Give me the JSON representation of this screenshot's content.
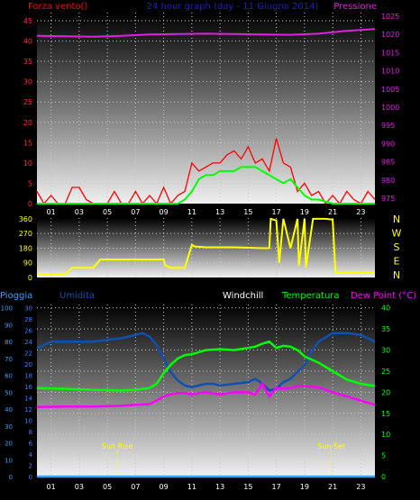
{
  "title": "24 hour graph (day - 11 Giugno 2014)",
  "chart_data": [
    {
      "type": "line",
      "name": "wind-pressure",
      "labels": {
        "left": "Forza vento()",
        "right": "Pressione"
      },
      "x_tick_labels": [
        "01",
        "03",
        "05",
        "07",
        "09",
        "11",
        "13",
        "15",
        "17",
        "19",
        "21",
        "23"
      ],
      "x_hours": [
        1,
        3,
        5,
        7,
        9,
        11,
        13,
        15,
        17,
        19,
        21,
        23
      ],
      "x_range": [
        0,
        24
      ],
      "left_axis": {
        "ticks": [
          0,
          5,
          10,
          15,
          20,
          25,
          30,
          35,
          40,
          45
        ],
        "range": [
          0,
          47
        ]
      },
      "right_axis": {
        "ticks": [
          975,
          980,
          985,
          990,
          995,
          1000,
          1005,
          1010,
          1015,
          1020,
          1025
        ],
        "range": [
          973.5,
          1026
        ]
      },
      "grid": true,
      "series": [
        {
          "name": "pressure",
          "axis": "right",
          "color": "#e020e0",
          "x": [
            0,
            2,
            4,
            6,
            8,
            10,
            12,
            14,
            16,
            18,
            20,
            22,
            24
          ],
          "y": [
            1019.6,
            1019.5,
            1019.4,
            1019.6,
            1020.0,
            1020.1,
            1020.2,
            1020.1,
            1020.0,
            1019.9,
            1020.2,
            1021.0,
            1021.5
          ]
        },
        {
          "name": "gust",
          "axis": "left",
          "color": "#ff0000",
          "x": [
            0,
            0.5,
            1,
            1.5,
            2,
            2.5,
            3,
            3.5,
            4,
            4.5,
            5,
            5.5,
            6,
            6.5,
            7,
            7.5,
            8,
            8.5,
            9,
            9.5,
            10,
            10.5,
            11,
            11.5,
            12,
            12.5,
            13,
            13.5,
            14,
            14.5,
            15,
            15.5,
            16,
            16.5,
            17,
            17.5,
            18,
            18.5,
            19,
            19.5,
            20,
            20.5,
            21,
            21.5,
            22,
            22.5,
            23,
            23.5,
            24
          ],
          "y": [
            3,
            0,
            2,
            0,
            0,
            4,
            4,
            1,
            0,
            0,
            0,
            3,
            0,
            0,
            3,
            0,
            2,
            0,
            4,
            0,
            2,
            3,
            10,
            8,
            9,
            10,
            10,
            12,
            13,
            11,
            14,
            10,
            11,
            8,
            16,
            10,
            9,
            3,
            5,
            2,
            3,
            0,
            2,
            0,
            3,
            1,
            0,
            3,
            1
          ]
        },
        {
          "name": "wind",
          "axis": "left",
          "color": "#00ff00",
          "x": [
            0,
            2,
            4,
            6,
            8,
            10,
            10.5,
            11,
            11.5,
            12,
            12.5,
            13,
            13.5,
            14,
            14.5,
            15,
            15.5,
            16,
            16.5,
            17,
            17.5,
            18,
            18.5,
            19,
            19.5,
            20,
            21,
            22,
            23,
            24
          ],
          "y": [
            0,
            0,
            0,
            0,
            0,
            0,
            1,
            3,
            6,
            7,
            7,
            8,
            8,
            8,
            9,
            9,
            9,
            8,
            7,
            6,
            5,
            6,
            4,
            2,
            1,
            1,
            0,
            0,
            0,
            0
          ]
        }
      ]
    },
    {
      "type": "line",
      "name": "wind-direction",
      "compass_labels": [
        "N",
        "W",
        "S",
        "E",
        "N"
      ],
      "x_range": [
        0,
        24
      ],
      "y_axis": {
        "ticks": [
          0,
          90,
          180,
          270,
          360
        ],
        "range": [
          0,
          365
        ]
      },
      "grid": true,
      "series": [
        {
          "name": "direction",
          "color": "#ffff00",
          "x": [
            0,
            2,
            2.5,
            4,
            4.5,
            9,
            9.1,
            9.5,
            10,
            10.5,
            11,
            11.2,
            12,
            14,
            16,
            16.5,
            16.6,
            17,
            17.2,
            17.5,
            18,
            18.5,
            18.6,
            19,
            19.1,
            19.6,
            20,
            20.5,
            21,
            21.2,
            22,
            23,
            24
          ],
          "y": [
            20,
            20,
            60,
            60,
            110,
            110,
            75,
            60,
            60,
            60,
            200,
            190,
            185,
            185,
            180,
            180,
            360,
            350,
            90,
            360,
            180,
            360,
            70,
            360,
            60,
            360,
            360,
            360,
            355,
            30,
            30,
            30,
            30
          ]
        }
      ]
    },
    {
      "type": "line",
      "name": "temperature-humidity",
      "labels": {
        "rain": "Pioggia",
        "humidity": "Umidita",
        "windchill": "Windchill",
        "temperature": "Temperatura",
        "dewpoint": "Dew Point (°C)"
      },
      "annotations": [
        {
          "label": "Sun Rise",
          "x": 5.7
        },
        {
          "label": "Sun Set",
          "x": 20.9
        }
      ],
      "x_range": [
        0,
        24
      ],
      "rain_axis": {
        "ticks": [
          0,
          10,
          20,
          30,
          40,
          50,
          60,
          70,
          80,
          90,
          100
        ],
        "range": [
          0,
          102
        ]
      },
      "humidity_axis": {
        "ticks": [
          0,
          2,
          4,
          6,
          8,
          10,
          12,
          14,
          16,
          18,
          20,
          22,
          24,
          26,
          28,
          30
        ],
        "range": [
          0,
          30.6
        ]
      },
      "temp_axis": {
        "ticks": [
          0,
          5,
          10,
          15,
          20,
          25,
          30,
          35,
          40
        ],
        "range": [
          0,
          40.8
        ]
      },
      "grid": true,
      "series": [
        {
          "name": "humidity",
          "axis": "left",
          "color": "#1050b0",
          "x": [
            0,
            1,
            2,
            3,
            4,
            5,
            6,
            7,
            7.5,
            8,
            8.5,
            9,
            9.5,
            10,
            10.5,
            11,
            11.5,
            12,
            12.5,
            13,
            14,
            15,
            15.5,
            16,
            16.5,
            17,
            17.5,
            18,
            18.5,
            19,
            19.5,
            20,
            21,
            22,
            23,
            24
          ],
          "y": [
            76,
            80,
            80,
            80,
            80,
            81,
            82,
            84,
            85,
            83,
            78,
            70,
            62,
            57,
            54,
            53,
            54,
            55,
            55,
            54,
            55,
            56,
            58,
            55,
            51,
            52,
            56,
            58,
            62,
            66,
            74,
            80,
            85,
            85,
            84,
            80
          ]
        },
        {
          "name": "temperature",
          "axis": "right",
          "color": "#00ff00",
          "x": [
            0,
            2,
            4,
            6,
            7,
            8,
            8.5,
            9,
            9.5,
            10,
            10.5,
            11,
            11.5,
            12,
            13,
            14,
            15,
            15.5,
            16,
            16.5,
            17,
            17.5,
            18,
            18.5,
            19,
            20,
            21,
            22,
            23,
            24
          ],
          "y": [
            21,
            20.8,
            20.6,
            20.4,
            20.6,
            21,
            22,
            24.5,
            26.5,
            28,
            28.8,
            29,
            29.5,
            30,
            30.2,
            30,
            30.5,
            30.8,
            31.5,
            32,
            30.5,
            31,
            30.8,
            30,
            28.5,
            27,
            25,
            23,
            22,
            21.5
          ]
        },
        {
          "name": "dewpoint",
          "axis": "right",
          "color": "#ff00ff",
          "x": [
            0,
            2,
            4,
            6,
            7,
            8,
            8.5,
            9,
            9.5,
            10,
            10.5,
            11,
            11.5,
            12,
            13,
            14,
            15,
            15.5,
            16,
            16.5,
            17,
            17.5,
            18,
            18.5,
            19,
            20,
            21,
            22,
            23,
            24
          ],
          "y": [
            16.5,
            16.6,
            16.6,
            16.8,
            17,
            17.2,
            18,
            19,
            19.5,
            19.8,
            19.8,
            19.5,
            19.8,
            20,
            19.5,
            20,
            20,
            19.5,
            22,
            19,
            21,
            20.8,
            21,
            21.5,
            21.5,
            21.2,
            20,
            19,
            18,
            17
          ]
        },
        {
          "name": "rain",
          "axis": "rain",
          "color": "#3aa0ff",
          "x": [
            0,
            24
          ],
          "y": [
            0,
            0
          ]
        }
      ]
    }
  ]
}
